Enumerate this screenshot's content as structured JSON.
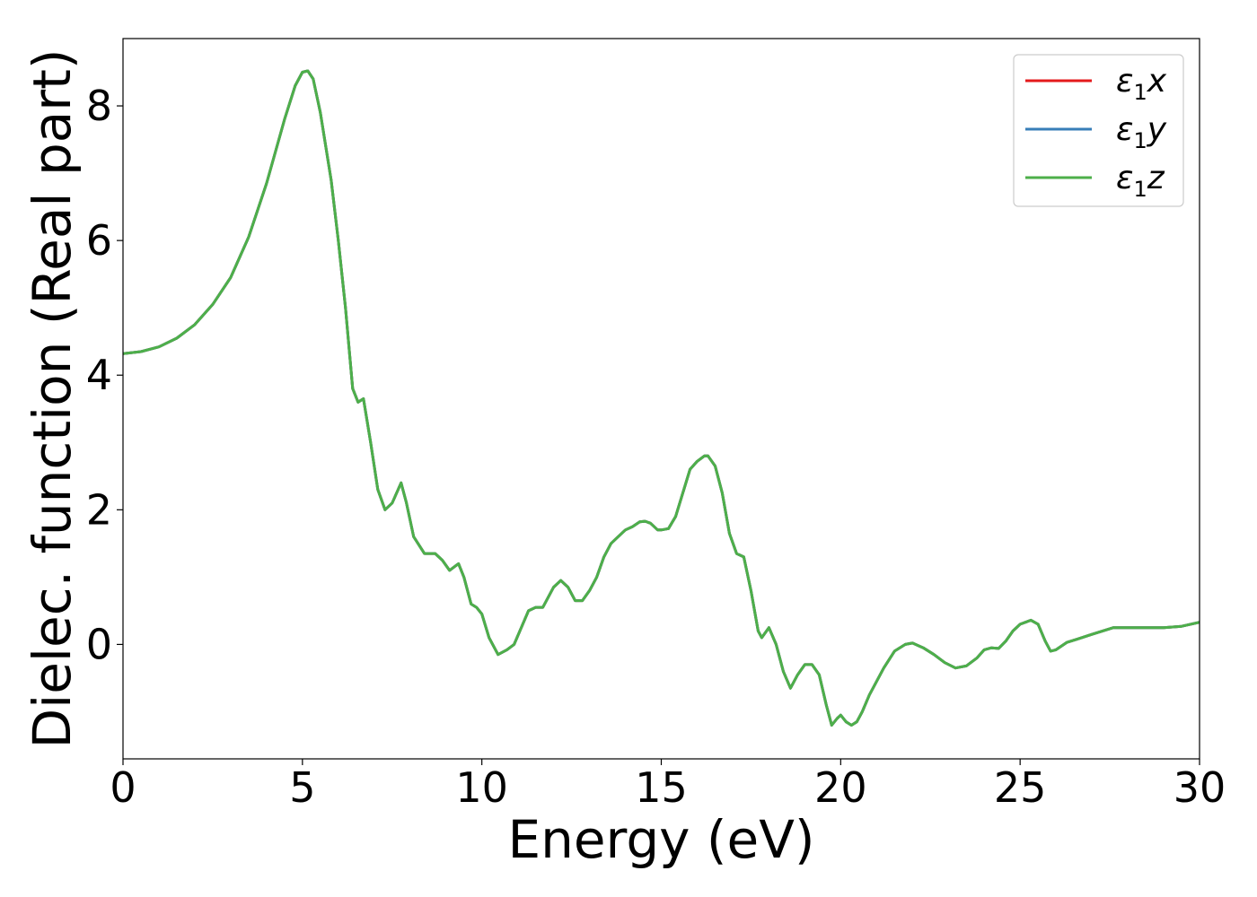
{
  "chart_data": {
    "type": "line",
    "title": "",
    "xlabel": "Energy (eV)",
    "ylabel": "Dielec. function (Real part)",
    "xlim": [
      0,
      30
    ],
    "ylim": [
      -1.7,
      9.0
    ],
    "xticks": [
      0,
      5,
      10,
      15,
      20,
      25,
      30
    ],
    "xtick_labels": [
      "0",
      "5",
      "10",
      "15",
      "20",
      "25",
      "30"
    ],
    "yticks": [
      0,
      2,
      4,
      6,
      8
    ],
    "ytick_labels": [
      "0",
      "2",
      "4",
      "6",
      "8"
    ],
    "grid": false,
    "legend": {
      "position": "top-right",
      "entries": [
        {
          "base": "ε",
          "sub": "1",
          "suffix": "x"
        },
        {
          "base": "ε",
          "sub": "1",
          "suffix": "y"
        },
        {
          "base": "ε",
          "sub": "1",
          "suffix": "z"
        }
      ]
    },
    "series_colors": [
      "#e41a1c",
      "#377eb8",
      "#4daf4a"
    ],
    "x": [
      0,
      0.5,
      1,
      1.5,
      2,
      2.5,
      3,
      3.5,
      4,
      4.5,
      4.8,
      5.0,
      5.15,
      5.3,
      5.5,
      5.8,
      6.0,
      6.2,
      6.4,
      6.55,
      6.7,
      6.9,
      7.1,
      7.3,
      7.5,
      7.75,
      7.9,
      8.1,
      8.4,
      8.7,
      8.9,
      9.1,
      9.35,
      9.5,
      9.7,
      9.85,
      10.0,
      10.2,
      10.45,
      10.7,
      10.9,
      11.1,
      11.3,
      11.5,
      11.7,
      12.0,
      12.2,
      12.4,
      12.6,
      12.8,
      13.0,
      13.2,
      13.4,
      13.6,
      13.8,
      14.0,
      14.2,
      14.4,
      14.55,
      14.7,
      14.9,
      15.0,
      15.2,
      15.4,
      15.6,
      15.8,
      16.0,
      16.2,
      16.3,
      16.5,
      16.7,
      16.9,
      17.1,
      17.3,
      17.5,
      17.7,
      17.8,
      18.0,
      18.2,
      18.4,
      18.6,
      18.8,
      19.0,
      19.2,
      19.4,
      19.6,
      19.75,
      19.9,
      20.0,
      20.15,
      20.3,
      20.45,
      20.6,
      20.8,
      21.0,
      21.2,
      21.5,
      21.8,
      22.0,
      22.3,
      22.6,
      22.9,
      23.2,
      23.5,
      23.8,
      24.0,
      24.2,
      24.4,
      24.6,
      24.8,
      25.0,
      25.3,
      25.5,
      25.7,
      25.85,
      26.0,
      26.3,
      26.6,
      27.0,
      27.3,
      27.6,
      28.0,
      28.5,
      29.0,
      29.5,
      30.0
    ],
    "series": [
      {
        "name": "ε1x",
        "values": [
          4.32,
          4.35,
          4.42,
          4.55,
          4.75,
          5.05,
          5.45,
          6.05,
          6.85,
          7.8,
          8.3,
          8.5,
          8.52,
          8.4,
          7.9,
          6.9,
          6.0,
          5.0,
          3.8,
          3.6,
          3.65,
          3.0,
          2.3,
          2.0,
          2.1,
          2.4,
          2.1,
          1.6,
          1.35,
          1.35,
          1.25,
          1.1,
          1.2,
          1.0,
          0.6,
          0.55,
          0.45,
          0.1,
          -0.15,
          -0.08,
          0.0,
          0.25,
          0.5,
          0.55,
          0.55,
          0.85,
          0.95,
          0.85,
          0.65,
          0.65,
          0.8,
          1.0,
          1.3,
          1.5,
          1.6,
          1.7,
          1.75,
          1.82,
          1.83,
          1.8,
          1.7,
          1.7,
          1.72,
          1.9,
          2.25,
          2.6,
          2.72,
          2.8,
          2.8,
          2.65,
          2.25,
          1.65,
          1.35,
          1.3,
          0.8,
          0.2,
          0.1,
          0.25,
          0.0,
          -0.4,
          -0.65,
          -0.45,
          -0.3,
          -0.3,
          -0.45,
          -0.9,
          -1.2,
          -1.1,
          -1.05,
          -1.15,
          -1.2,
          -1.15,
          -1.0,
          -0.75,
          -0.55,
          -0.35,
          -0.1,
          0.0,
          0.02,
          -0.05,
          -0.15,
          -0.27,
          -0.35,
          -0.32,
          -0.2,
          -0.08,
          -0.05,
          -0.06,
          0.05,
          0.2,
          0.3,
          0.36,
          0.3,
          0.05,
          -0.1,
          -0.08,
          0.03,
          0.08,
          0.15,
          0.2,
          0.25,
          0.25,
          0.25,
          0.25,
          0.27,
          0.33
        ]
      },
      {
        "name": "ε1y",
        "values": [
          4.32,
          4.35,
          4.42,
          4.55,
          4.75,
          5.05,
          5.45,
          6.05,
          6.85,
          7.8,
          8.3,
          8.5,
          8.52,
          8.4,
          7.9,
          6.9,
          6.0,
          5.0,
          3.8,
          3.6,
          3.65,
          3.0,
          2.3,
          2.0,
          2.1,
          2.4,
          2.1,
          1.6,
          1.35,
          1.35,
          1.25,
          1.1,
          1.2,
          1.0,
          0.6,
          0.55,
          0.45,
          0.1,
          -0.15,
          -0.08,
          0.0,
          0.25,
          0.5,
          0.55,
          0.55,
          0.85,
          0.95,
          0.85,
          0.65,
          0.65,
          0.8,
          1.0,
          1.3,
          1.5,
          1.6,
          1.7,
          1.75,
          1.82,
          1.83,
          1.8,
          1.7,
          1.7,
          1.72,
          1.9,
          2.25,
          2.6,
          2.72,
          2.8,
          2.8,
          2.65,
          2.25,
          1.65,
          1.35,
          1.3,
          0.8,
          0.2,
          0.1,
          0.25,
          0.0,
          -0.4,
          -0.65,
          -0.45,
          -0.3,
          -0.3,
          -0.45,
          -0.9,
          -1.2,
          -1.1,
          -1.05,
          -1.15,
          -1.2,
          -1.15,
          -1.0,
          -0.75,
          -0.55,
          -0.35,
          -0.1,
          0.0,
          0.02,
          -0.05,
          -0.15,
          -0.27,
          -0.35,
          -0.32,
          -0.2,
          -0.08,
          -0.05,
          -0.06,
          0.05,
          0.2,
          0.3,
          0.36,
          0.3,
          0.05,
          -0.1,
          -0.08,
          0.03,
          0.08,
          0.15,
          0.2,
          0.25,
          0.25,
          0.25,
          0.25,
          0.27,
          0.33
        ]
      },
      {
        "name": "ε1z",
        "values": [
          4.32,
          4.35,
          4.42,
          4.55,
          4.75,
          5.05,
          5.45,
          6.05,
          6.85,
          7.8,
          8.3,
          8.5,
          8.52,
          8.4,
          7.9,
          6.9,
          6.0,
          5.0,
          3.8,
          3.6,
          3.65,
          3.0,
          2.3,
          2.0,
          2.1,
          2.4,
          2.1,
          1.6,
          1.35,
          1.35,
          1.25,
          1.1,
          1.2,
          1.0,
          0.6,
          0.55,
          0.45,
          0.1,
          -0.15,
          -0.08,
          0.0,
          0.25,
          0.5,
          0.55,
          0.55,
          0.85,
          0.95,
          0.85,
          0.65,
          0.65,
          0.8,
          1.0,
          1.3,
          1.5,
          1.6,
          1.7,
          1.75,
          1.82,
          1.83,
          1.8,
          1.7,
          1.7,
          1.72,
          1.9,
          2.25,
          2.6,
          2.72,
          2.8,
          2.8,
          2.65,
          2.25,
          1.65,
          1.35,
          1.3,
          0.8,
          0.2,
          0.1,
          0.25,
          0.0,
          -0.4,
          -0.65,
          -0.45,
          -0.3,
          -0.3,
          -0.45,
          -0.9,
          -1.2,
          -1.1,
          -1.05,
          -1.15,
          -1.2,
          -1.15,
          -1.0,
          -0.75,
          -0.55,
          -0.35,
          -0.1,
          0.0,
          0.02,
          -0.05,
          -0.15,
          -0.27,
          -0.35,
          -0.32,
          -0.2,
          -0.08,
          -0.05,
          -0.06,
          0.05,
          0.2,
          0.3,
          0.36,
          0.3,
          0.05,
          -0.1,
          -0.08,
          0.03,
          0.08,
          0.15,
          0.2,
          0.25,
          0.25,
          0.25,
          0.25,
          0.27,
          0.33
        ]
      }
    ]
  }
}
